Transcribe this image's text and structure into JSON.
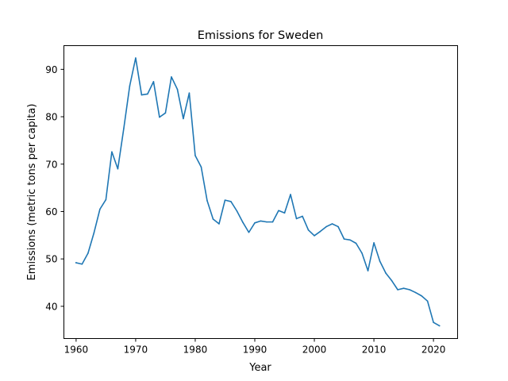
{
  "chart_data": {
    "type": "line",
    "title": "Emissions for Sweden",
    "xlabel": "Year",
    "ylabel": "Emissions (metric tons per capita)",
    "xlim": [
      1957.95,
      2024.05
    ],
    "ylim": [
      33.2,
      95.0
    ],
    "xticks": [
      1960,
      1970,
      1980,
      1990,
      2000,
      2010,
      2020
    ],
    "yticks": [
      40,
      50,
      60,
      70,
      80,
      90
    ],
    "grid": false,
    "legend": "none",
    "colors": {
      "series": "#1f77b4"
    },
    "series": [
      {
        "x": [
          1960,
          1961,
          1962,
          1963,
          1964,
          1965,
          1966,
          1967,
          1968,
          1969,
          1970,
          1971,
          1972,
          1973,
          1974,
          1975,
          1976,
          1977,
          1978,
          1979,
          1980,
          1981,
          1982,
          1983,
          1984,
          1985,
          1986,
          1987,
          1988,
          1989,
          1990,
          1991,
          1992,
          1993,
          1994,
          1995,
          1996,
          1997,
          1998,
          1999,
          2000,
          2001,
          2002,
          2003,
          2004,
          2005,
          2006,
          2007,
          2008,
          2009,
          2010,
          2011,
          2012,
          2013,
          2014,
          2015,
          2016,
          2017,
          2018,
          2019,
          2020,
          2021
        ],
        "values": [
          49.2,
          48.9,
          51.2,
          55.5,
          60.5,
          62.5,
          72.6,
          69.0,
          77.5,
          86.5,
          92.4,
          84.6,
          84.8,
          87.4,
          79.9,
          80.8,
          88.4,
          85.8,
          79.6,
          85.0,
          71.8,
          69.4,
          62.3,
          58.4,
          57.4,
          62.4,
          62.1,
          60.1,
          57.7,
          55.6,
          57.6,
          58.0,
          57.8,
          57.8,
          60.2,
          59.7,
          63.6,
          58.5,
          59.0,
          56.1,
          54.9,
          55.8,
          56.8,
          57.4,
          56.8,
          54.2,
          54.0,
          53.3,
          51.2,
          47.5,
          53.4,
          49.5,
          47.0,
          45.4,
          43.5,
          43.8,
          43.5,
          42.9,
          42.2,
          41.1,
          36.6,
          35.9
        ]
      }
    ]
  }
}
